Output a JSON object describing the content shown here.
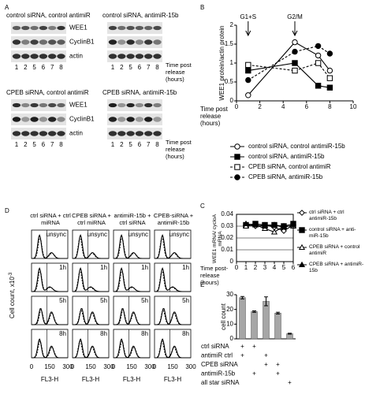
{
  "panel_labels": [
    "A",
    "B",
    "C",
    "D",
    "E"
  ],
  "blots": {
    "groups": [
      "control siRNA, control antimiR",
      "control siRNA, antimiR-15b",
      "CPEB siRNA, control antimiR",
      "CPEB siRNA, antimiR-15b"
    ],
    "bands": [
      "WEE1",
      "CyclinB1",
      "actin"
    ],
    "lanes": [
      1,
      2,
      5,
      6,
      7,
      8
    ],
    "time_label": "Time post release (hours)"
  },
  "flow": {
    "columns": [
      "ctrl siRNA + ctrl miRNA",
      "CPEB siRNA + ctrl miRNA",
      "antimiR-15b + ctrl siRNA",
      "CPEB-siRNA + antimiR-15b"
    ],
    "rows": [
      "unsync",
      "1h",
      "5h",
      "8h"
    ],
    "xticks": [
      0,
      150,
      300
    ],
    "ylabel": "Cell count, x10",
    "ylabel_exp": "-3",
    "xlabel": "FL3-H"
  },
  "chart_data": [
    {
      "type": "line",
      "ylabel": "WEE1 protein/actin protein",
      "xlabel": "Time post release (hours)",
      "xlim": [
        0,
        10
      ],
      "xticks": [
        0,
        2,
        4,
        6,
        8,
        10
      ],
      "ylim": [
        0,
        2
      ],
      "yticks": [
        0,
        0.5,
        1,
        1.5,
        2
      ],
      "annotations": [
        {
          "text": "G1+S",
          "x": 1
        },
        {
          "text": "G2/M",
          "x": 5
        }
      ],
      "x": [
        1,
        5,
        7,
        8
      ],
      "series": [
        {
          "name": "control siRNA, control antimiR-15b",
          "color": "#000000",
          "marker": "circle",
          "filled": false,
          "dashed": false,
          "values": [
            0.15,
            1.55,
            1.2,
            0.8
          ]
        },
        {
          "name": "control siRNA, antimiR-15b",
          "color": "#000000",
          "marker": "square",
          "filled": true,
          "dashed": false,
          "values": [
            0.8,
            1.0,
            0.4,
            0.35
          ]
        },
        {
          "name": "CPEB siRNA, control antimiR",
          "color": "#000000",
          "marker": "square",
          "filled": false,
          "dashed": true,
          "values": [
            0.95,
            0.8,
            1.0,
            0.6
          ]
        },
        {
          "name": "CPEB siRNA, antimiR-15b",
          "color": "#000000",
          "marker": "circle",
          "filled": true,
          "dashed": true,
          "values": [
            0.55,
            1.3,
            1.45,
            1.25
          ]
        }
      ]
    },
    {
      "type": "line",
      "ylabel": "WEE1 mRNA/ cycloA mRNA",
      "xlabel": "Time post-release (hours)",
      "grid": true,
      "xlim": [
        0,
        6
      ],
      "xticks": [
        0,
        1,
        2,
        3,
        4,
        5,
        6
      ],
      "ylim": [
        0,
        0.04
      ],
      "yticks": [
        0,
        0.01,
        0.02,
        0.03,
        0.04
      ],
      "x": [
        1,
        2,
        3,
        4,
        5,
        6
      ],
      "series": [
        {
          "name": "ctrl siRNA + ctrl antimiR-15b",
          "color": "#000000",
          "marker": "diamond",
          "filled": false,
          "dashed": false,
          "values": [
            0.031,
            0.03,
            0.031,
            0.029,
            0.026,
            0.031
          ]
        },
        {
          "name": "control siRNA + anti-miR-15b",
          "color": "#000000",
          "marker": "square",
          "filled": true,
          "dashed": false,
          "values": [
            0.031,
            0.032,
            0.031,
            0.031,
            0.03,
            0.032
          ]
        },
        {
          "name": "CPEB siRNA + control antimiR",
          "color": "#000000",
          "marker": "triangle",
          "filled": false,
          "dashed": false,
          "values": [
            0.03,
            0.031,
            0.028,
            0.025,
            0.03,
            0.03
          ]
        },
        {
          "name": "CPEB siRNA + antimiR-15b",
          "color": "#000000",
          "marker": "triangle",
          "filled": true,
          "dashed": false,
          "values": [
            0.032,
            0.031,
            0.03,
            0.031,
            0.029,
            0.031
          ]
        }
      ]
    },
    {
      "type": "bar",
      "ylabel": "cell count",
      "ylim": [
        0,
        30
      ],
      "yticks": [
        0,
        10,
        20,
        30
      ],
      "color": "#a6a6a6",
      "values": [
        28,
        18.5,
        25.5,
        17.5,
        3.5
      ],
      "errors": [
        0.8,
        0.5,
        3,
        0.6,
        0.3
      ],
      "conditions": {
        "labels": [
          "ctrl siRNA",
          "antimiR ctrl",
          "CPEB siRNA",
          "antimiR-15b",
          "all star siRNA"
        ],
        "matrix": [
          [
            "+",
            "+",
            null,
            null,
            null
          ],
          [
            "+",
            null,
            "+",
            null,
            null
          ],
          [
            null,
            null,
            "+",
            "+",
            null
          ],
          [
            null,
            "+",
            null,
            "+",
            null
          ],
          [
            null,
            null,
            null,
            null,
            "+"
          ]
        ]
      }
    }
  ]
}
